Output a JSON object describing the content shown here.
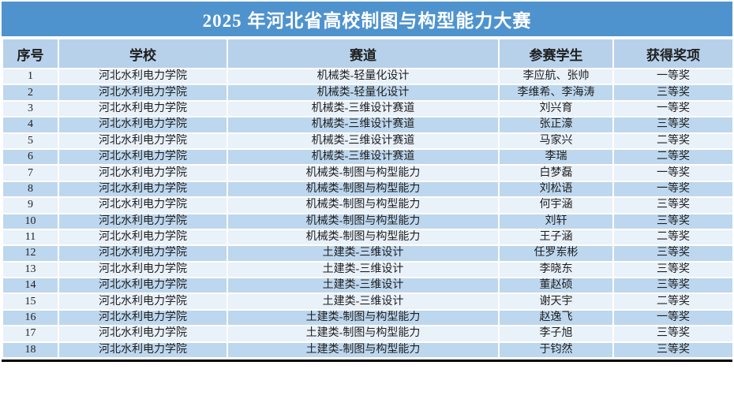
{
  "title": "2025 年河北省高校制图与构型能力大赛",
  "columns": {
    "no": "序号",
    "school": "学校",
    "track": "赛道",
    "students": "参赛学生",
    "award": "获得奖项"
  },
  "rows": [
    {
      "no": "1",
      "school": "河北水利电力学院",
      "track": "机械类-轻量化设计",
      "students": "李应航、张帅",
      "award": "一等奖"
    },
    {
      "no": "2",
      "school": "河北水利电力学院",
      "track": "机械类-轻量化设计",
      "students": "李维希、李海涛",
      "award": "三等奖"
    },
    {
      "no": "3",
      "school": "河北水利电力学院",
      "track": "机械类-三维设计赛道",
      "students": "刘兴育",
      "award": "一等奖"
    },
    {
      "no": "4",
      "school": "河北水利电力学院",
      "track": "机械类-三维设计赛道",
      "students": "张正濠",
      "award": "三等奖"
    },
    {
      "no": "5",
      "school": "河北水利电力学院",
      "track": "机械类-三维设计赛道",
      "students": "马家兴",
      "award": "二等奖"
    },
    {
      "no": "6",
      "school": "河北水利电力学院",
      "track": "机械类-三维设计赛道",
      "students": "李瑞",
      "award": "二等奖"
    },
    {
      "no": "7",
      "school": "河北水利电力学院",
      "track": "机械类-制图与构型能力",
      "students": "白梦磊",
      "award": "一等奖"
    },
    {
      "no": "8",
      "school": "河北水利电力学院",
      "track": "机械类-制图与构型能力",
      "students": "刘松语",
      "award": "一等奖"
    },
    {
      "no": "9",
      "school": "河北水利电力学院",
      "track": "机械类-制图与构型能力",
      "students": "何宇涵",
      "award": "三等奖"
    },
    {
      "no": "10",
      "school": "河北水利电力学院",
      "track": "机械类-制图与构型能力",
      "students": "刘轩",
      "award": "三等奖"
    },
    {
      "no": "11",
      "school": "河北水利电力学院",
      "track": "机械类-制图与构型能力",
      "students": "王子涵",
      "award": "二等奖"
    },
    {
      "no": "12",
      "school": "河北水利电力学院",
      "track": "土建类-三维设计",
      "students": "任罗岽彬",
      "award": "三等奖"
    },
    {
      "no": "13",
      "school": "河北水利电力学院",
      "track": "土建类-三维设计",
      "students": "李晓东",
      "award": "三等奖"
    },
    {
      "no": "14",
      "school": "河北水利电力学院",
      "track": "土建类-三维设计",
      "students": "董赵硕",
      "award": "三等奖"
    },
    {
      "no": "15",
      "school": "河北水利电力学院",
      "track": "土建类-三维设计",
      "students": "谢天宇",
      "award": "二等奖"
    },
    {
      "no": "16",
      "school": "河北水利电力学院",
      "track": "土建类-制图与构型能力",
      "students": "赵逸飞",
      "award": "一等奖"
    },
    {
      "no": "17",
      "school": "河北水利电力学院",
      "track": "土建类-制图与构型能力",
      "students": "李子旭",
      "award": "三等奖"
    },
    {
      "no": "18",
      "school": "河北水利电力学院",
      "track": "土建类-制图与构型能力",
      "students": "于钧然",
      "award": "三等奖"
    }
  ],
  "colors": {
    "title_bg": "#4f93ce",
    "title_text": "#ffffff",
    "header_bg": "#b7d1ea",
    "row_light": "#e9f1f9",
    "row_blue": "#bdd7ee",
    "grid": "#ffffff",
    "text": "#1f1f1f",
    "bottom_border": "#000000"
  }
}
